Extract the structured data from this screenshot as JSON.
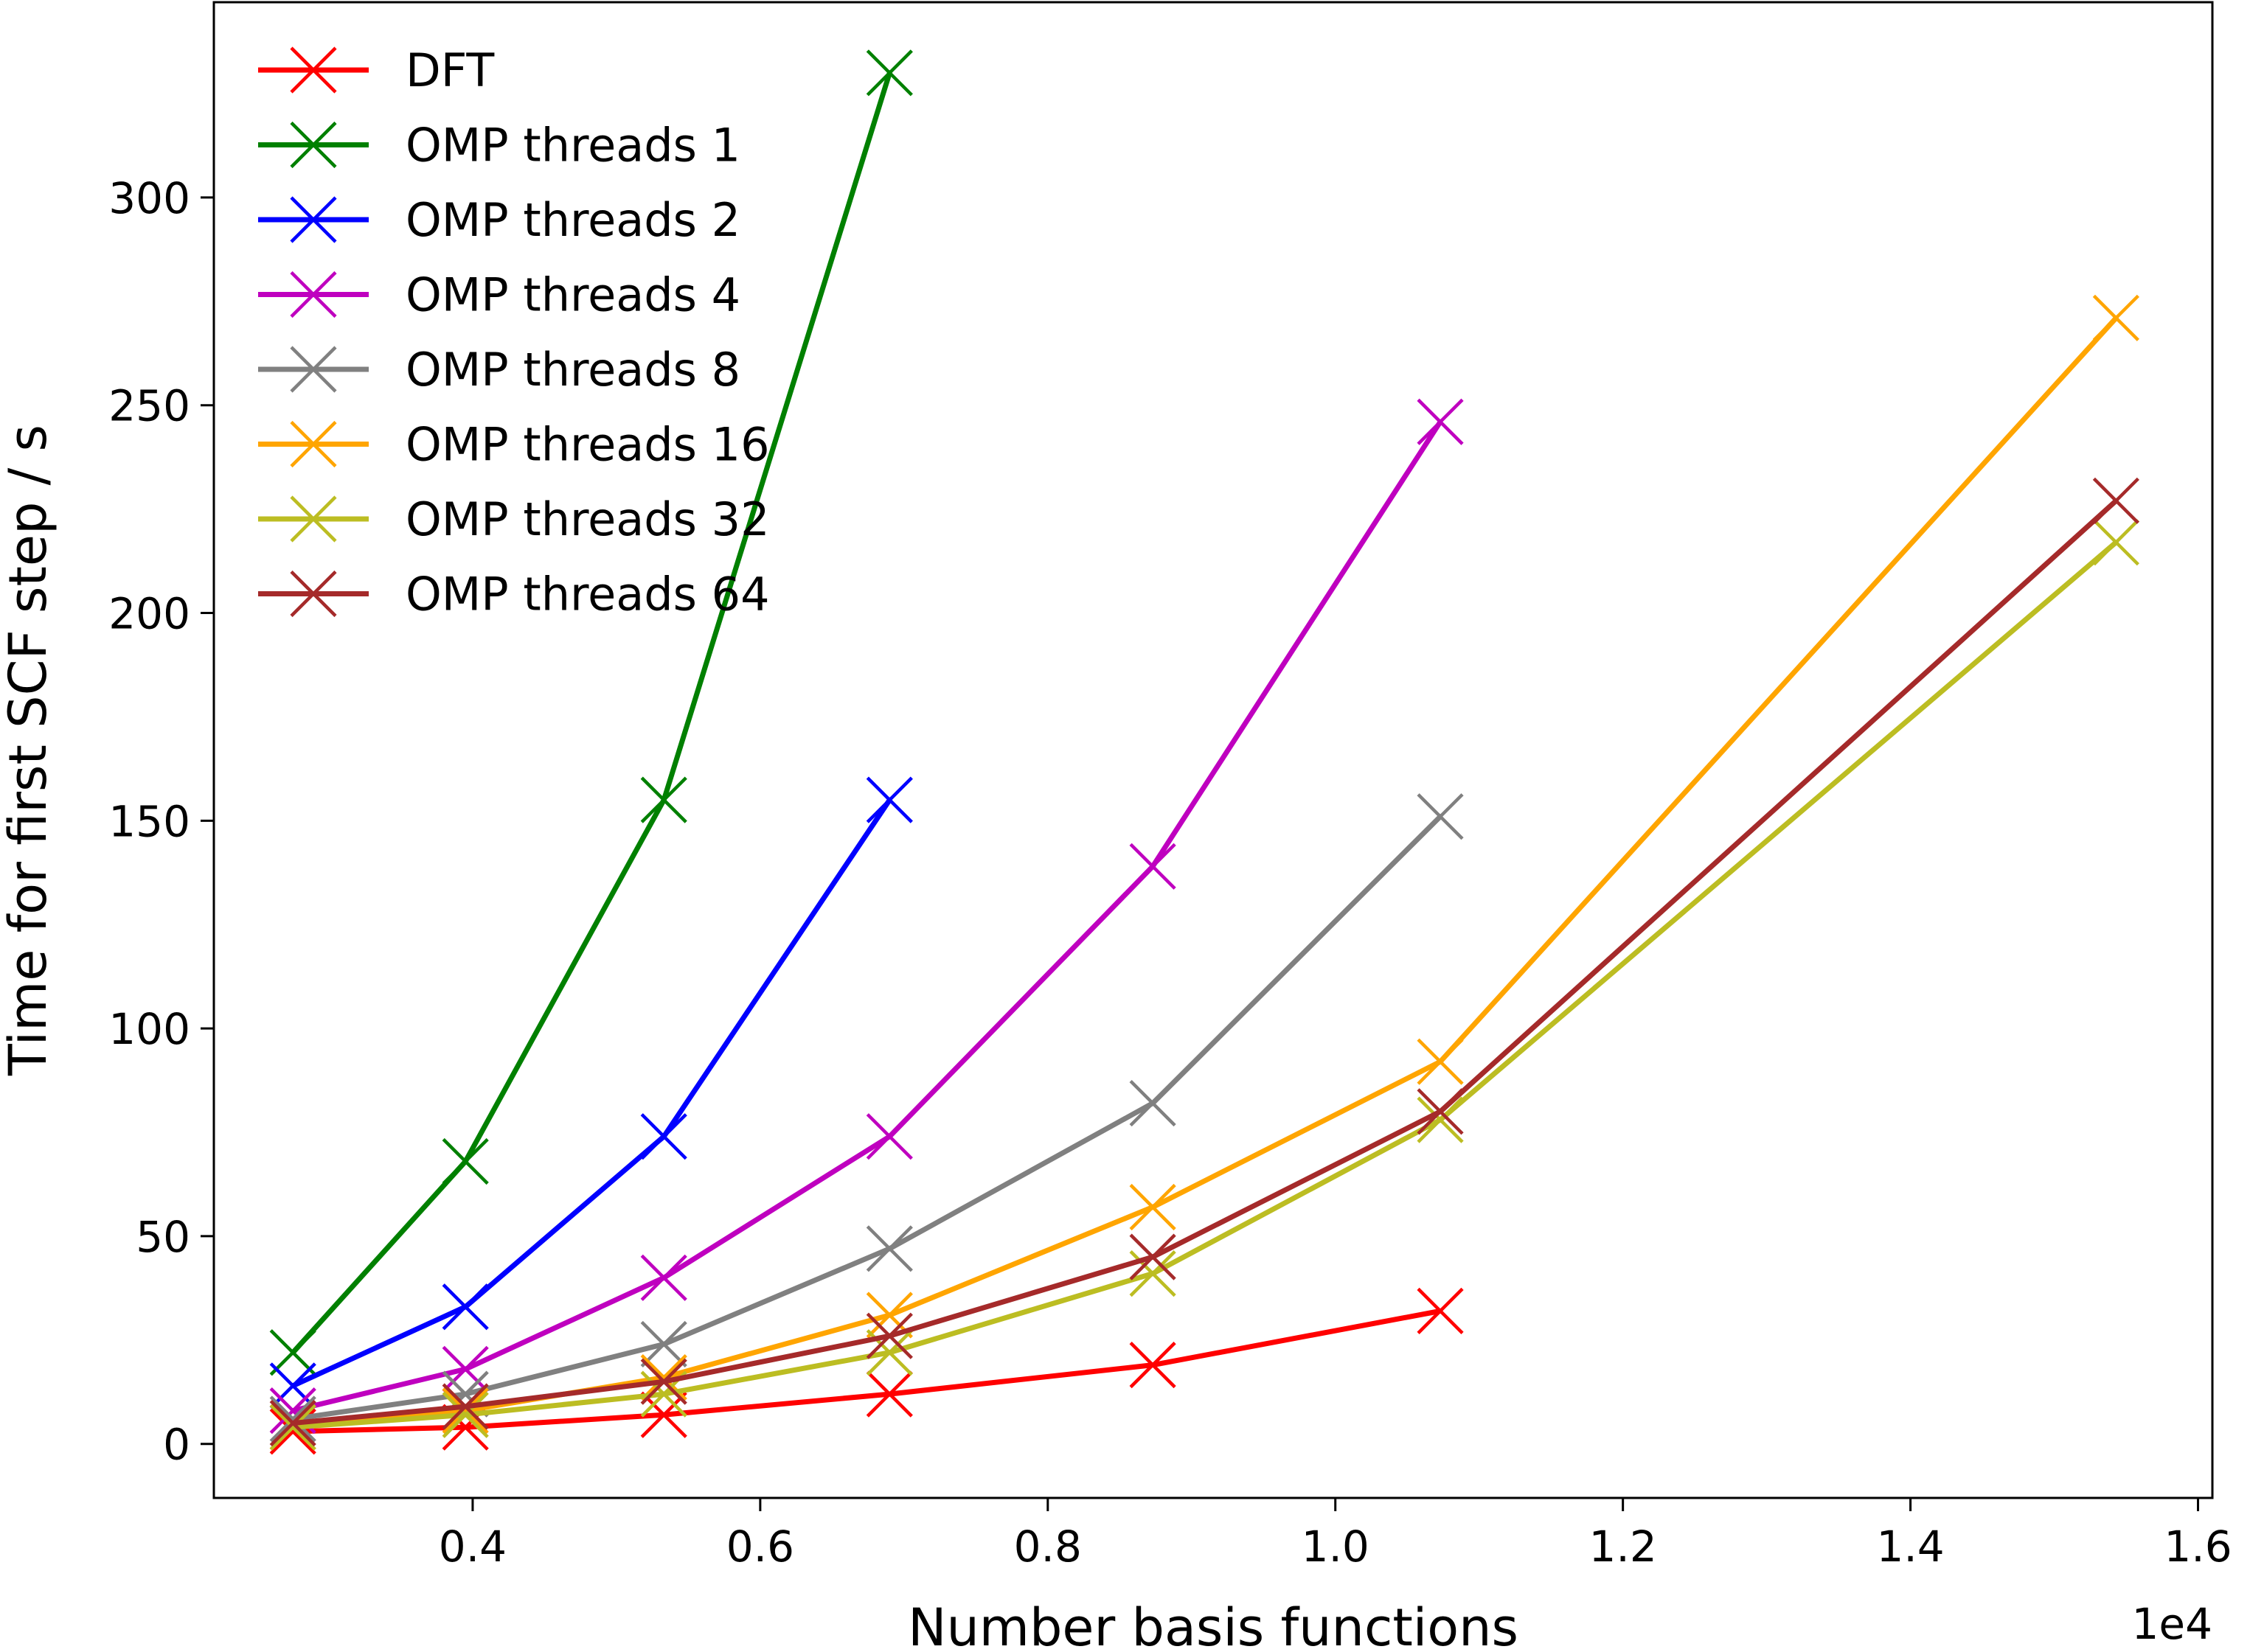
{
  "chart_data": {
    "type": "line",
    "title": "",
    "xlabel": "Number basis functions",
    "ylabel": "Time for first SCF step / s",
    "x_offset_label": "1e4",
    "xlim": [
      0.22,
      1.61
    ],
    "ylim": [
      -13,
      347
    ],
    "xticks": [
      0.4,
      0.6,
      0.8,
      1.0,
      1.2,
      1.4,
      1.6
    ],
    "xtick_labels": [
      "0.4",
      "0.6",
      "0.8",
      "1.0",
      "1.2",
      "1.4",
      "1.6"
    ],
    "yticks": [
      0,
      50,
      100,
      150,
      200,
      250,
      300
    ],
    "ytick_labels": [
      "0",
      "50",
      "100",
      "150",
      "200",
      "250",
      "300"
    ],
    "grid": false,
    "legend_position": "top-left",
    "marker": "x",
    "series": [
      {
        "name": "DFT",
        "color": "#ff0000",
        "x": [
          0.275,
          0.395,
          0.533,
          0.69,
          0.873,
          1.073
        ],
        "y": [
          3,
          4,
          7,
          12,
          19,
          32
        ]
      },
      {
        "name": "OMP threads 1",
        "color": "#008000",
        "x": [
          0.275,
          0.395,
          0.533,
          0.69
        ],
        "y": [
          22,
          68,
          155,
          330
        ]
      },
      {
        "name": "OMP threads 2",
        "color": "#0000ff",
        "x": [
          0.275,
          0.395,
          0.533,
          0.69
        ],
        "y": [
          14,
          33,
          74,
          155
        ]
      },
      {
        "name": "OMP threads 4",
        "color": "#bf00bf",
        "x": [
          0.275,
          0.395,
          0.533,
          0.69,
          0.873,
          1.073
        ],
        "y": [
          8,
          18,
          40,
          74,
          139,
          246
        ]
      },
      {
        "name": "OMP threads 8",
        "color": "#808080",
        "x": [
          0.275,
          0.395,
          0.533,
          0.69,
          0.873,
          1.073
        ],
        "y": [
          6,
          12,
          24,
          47,
          82,
          151
        ]
      },
      {
        "name": "OMP threads 16",
        "color": "#ffa500",
        "x": [
          0.275,
          0.395,
          0.533,
          0.69,
          0.873,
          1.073,
          1.543
        ],
        "y": [
          4,
          8,
          16,
          31,
          57,
          92,
          271
        ]
      },
      {
        "name": "OMP threads 32",
        "color": "#bcbd22",
        "x": [
          0.275,
          0.395,
          0.533,
          0.69,
          0.873,
          1.073,
          1.543
        ],
        "y": [
          4,
          7,
          12,
          22,
          41,
          78,
          217
        ]
      },
      {
        "name": "OMP threads 64",
        "color": "#a52a2a",
        "x": [
          0.275,
          0.395,
          0.533,
          0.69,
          0.873,
          1.073,
          1.543
        ],
        "y": [
          5,
          9,
          15,
          26,
          45,
          80,
          227
        ]
      }
    ]
  }
}
